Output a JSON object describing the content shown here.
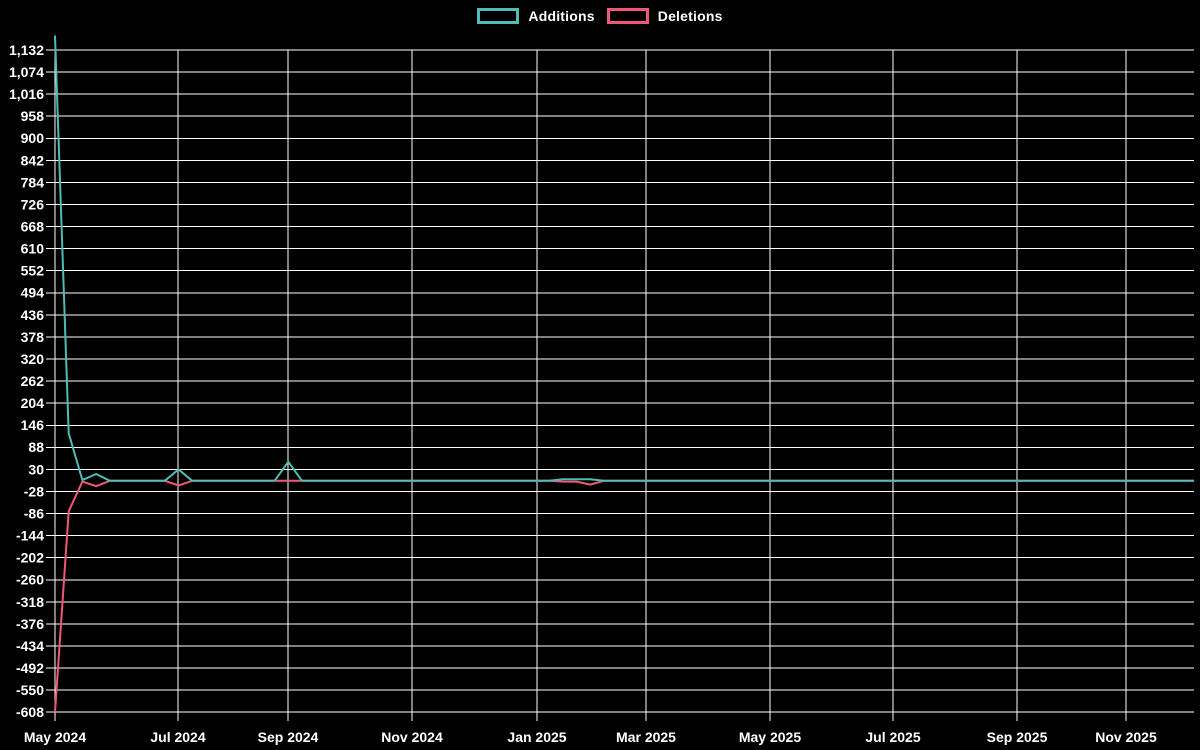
{
  "legend": {
    "items": [
      {
        "label": "Additions",
        "color": "#4dbdb6"
      },
      {
        "label": "Deletions",
        "color": "#f0587a"
      }
    ]
  },
  "chart_data": {
    "type": "line",
    "title": "",
    "xlabel": "",
    "ylabel": "",
    "background_color": "#000000",
    "grid_color": "#ffffff",
    "text_color": "#ffffff",
    "grid": true,
    "legend_position": "top-center",
    "x_unit": "week",
    "start_week": "2024-05-05",
    "end_week": "2025-12-07",
    "ylim": [
      -610,
      1174
    ],
    "y_tick_step": 58,
    "y_tick_labels": [
      "1,132",
      "1,074",
      "1,016",
      "958",
      "900",
      "842",
      "784",
      "726",
      "668",
      "610",
      "552",
      "494",
      "436",
      "378",
      "320",
      "262",
      "204",
      "146",
      "88",
      "30",
      "-28",
      "-86",
      "-144",
      "-202",
      "-260",
      "-318",
      "-376",
      "-434",
      "-492",
      "-550",
      "-608"
    ],
    "x_tick_labels": [
      "May 2024",
      "Jul 2024",
      "Sep 2024",
      "Nov 2024",
      "Jan 2025",
      "Mar 2025",
      "May 2025",
      "Jul 2025",
      "Sep 2025",
      "Nov 2025"
    ],
    "series": [
      {
        "name": "Additions",
        "color": "#4dbdb6",
        "values": [
          1170,
          125,
          2,
          18,
          0,
          0,
          0,
          0,
          0,
          30,
          0,
          0,
          0,
          0,
          0,
          0,
          0,
          50,
          0,
          0,
          0,
          0,
          0,
          0,
          0,
          0,
          0,
          0,
          0,
          0,
          0,
          0,
          0,
          0,
          0,
          0,
          0,
          4,
          4,
          4,
          0,
          0,
          0,
          0,
          0,
          0,
          0,
          0,
          0,
          0,
          0,
          0,
          0,
          0,
          0,
          0,
          0,
          0,
          0,
          0,
          0,
          0,
          0,
          0,
          0,
          0,
          0,
          0,
          0,
          0,
          0,
          0,
          0,
          0,
          0,
          0,
          0,
          0,
          0,
          0,
          0,
          0,
          0,
          0
        ]
      },
      {
        "name": "Deletions",
        "color": "#f0587a",
        "values": [
          -608,
          -80,
          -2,
          -14,
          0,
          0,
          0,
          0,
          0,
          -12,
          0,
          0,
          0,
          0,
          0,
          0,
          0,
          0,
          0,
          0,
          0,
          0,
          0,
          0,
          0,
          0,
          0,
          0,
          0,
          0,
          0,
          0,
          0,
          0,
          0,
          0,
          0,
          -2,
          -2,
          -10,
          0,
          0,
          0,
          0,
          0,
          0,
          0,
          0,
          0,
          0,
          0,
          0,
          0,
          0,
          0,
          0,
          0,
          0,
          0,
          0,
          0,
          0,
          0,
          0,
          0,
          0,
          0,
          0,
          0,
          0,
          0,
          0,
          0,
          0,
          0,
          0,
          0,
          0,
          0,
          0,
          0,
          0,
          0,
          0
        ]
      }
    ]
  }
}
